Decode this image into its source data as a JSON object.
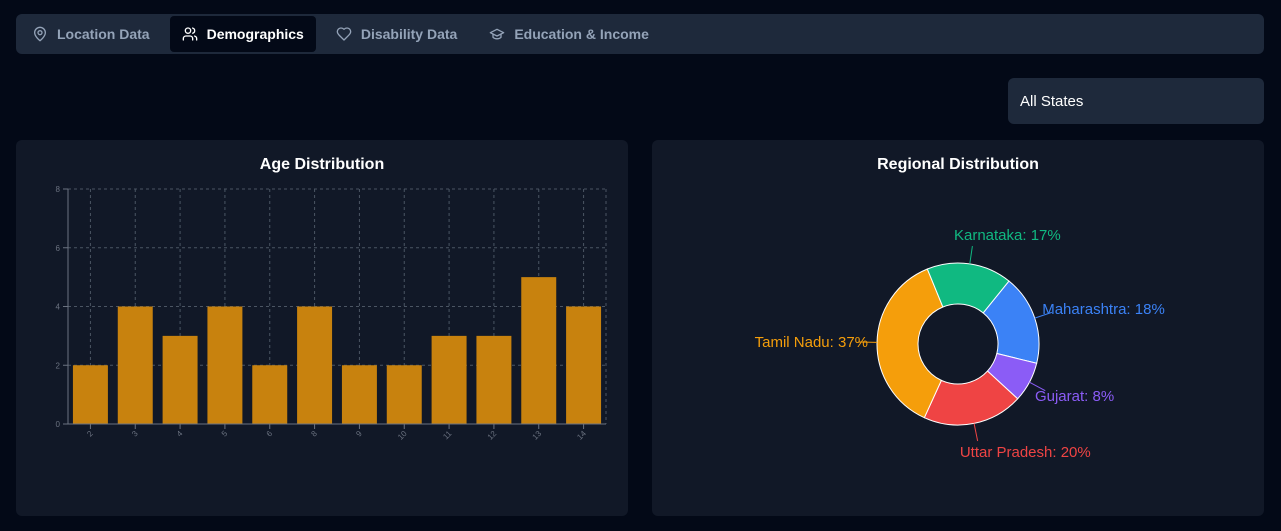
{
  "tabs": [
    {
      "label": "Location Data",
      "icon": "map-pin-icon",
      "active": false
    },
    {
      "label": "Demographics",
      "icon": "users-icon",
      "active": true
    },
    {
      "label": "Disability Data",
      "icon": "heart-icon",
      "active": false
    },
    {
      "label": "Education & Income",
      "icon": "graduation-cap-icon",
      "active": false
    }
  ],
  "state_filter": {
    "selected": "All States"
  },
  "colors": {
    "bar": "#c8820e",
    "grid": "#4b5563",
    "axis": "#6b7280"
  },
  "chart_data": [
    {
      "type": "bar",
      "title": "Age Distribution",
      "categories": [
        "2",
        "3",
        "4",
        "5",
        "6",
        "8",
        "9",
        "10",
        "11",
        "12",
        "13",
        "14"
      ],
      "values": [
        2,
        4,
        3,
        4,
        2,
        4,
        2,
        2,
        3,
        3,
        5,
        4
      ],
      "ylim": [
        0,
        8
      ],
      "yticks": [
        "0",
        "2",
        "4",
        "6",
        "8"
      ],
      "xlabel": "",
      "ylabel": "",
      "grid": true
    },
    {
      "type": "pie",
      "title": "Regional Distribution",
      "donut": true,
      "slices": [
        {
          "label": "Maharashtra",
          "value": 18,
          "text": "Maharashtra: 18%",
          "color": "#3b82f6"
        },
        {
          "label": "Gujarat",
          "value": 8,
          "text": "Gujarat: 8%",
          "color": "#8b5cf6"
        },
        {
          "label": "Uttar Pradesh",
          "value": 20,
          "text": "Uttar Pradesh: 20%",
          "color": "#ef4444"
        },
        {
          "label": "Tamil Nadu",
          "value": 37,
          "text": "Tamil Nadu: 37%",
          "color": "#f59e0b"
        },
        {
          "label": "Karnataka",
          "value": 17,
          "text": "Karnataka: 17%",
          "color": "#10b981"
        }
      ]
    }
  ]
}
